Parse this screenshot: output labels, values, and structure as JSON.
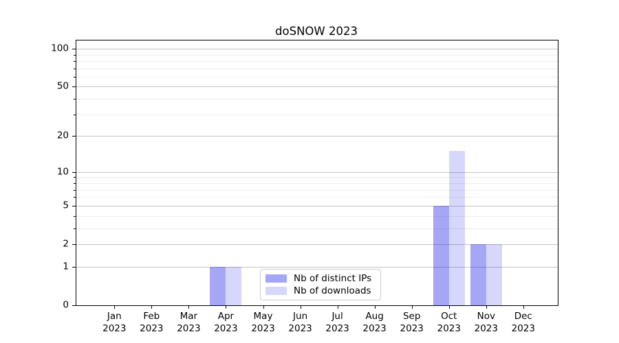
{
  "title": "doSNOW 2023",
  "chart_data": {
    "type": "bar",
    "title": "doSNOW 2023",
    "categories": [
      {
        "month": "Jan",
        "year": "2023"
      },
      {
        "month": "Feb",
        "year": "2023"
      },
      {
        "month": "Mar",
        "year": "2023"
      },
      {
        "month": "Apr",
        "year": "2023"
      },
      {
        "month": "May",
        "year": "2023"
      },
      {
        "month": "Jun",
        "year": "2023"
      },
      {
        "month": "Jul",
        "year": "2023"
      },
      {
        "month": "Aug",
        "year": "2023"
      },
      {
        "month": "Sep",
        "year": "2023"
      },
      {
        "month": "Oct",
        "year": "2023"
      },
      {
        "month": "Nov",
        "year": "2023"
      },
      {
        "month": "Dec",
        "year": "2023"
      }
    ],
    "series": [
      {
        "name": "Nb of distinct IPs",
        "color": "rgba(8,8,232,0.36)",
        "solid_color": "#a8a8f7",
        "values": [
          0,
          0,
          0,
          1,
          0,
          0,
          0,
          0,
          0,
          5,
          2,
          0
        ]
      },
      {
        "name": "Nb of downloads",
        "color": "rgba(8,8,232,0.16)",
        "solid_color": "#dcdcf9",
        "values": [
          0,
          0,
          0,
          1,
          0,
          0,
          0,
          0,
          0,
          15,
          2,
          0
        ]
      }
    ],
    "yscale": "log1p",
    "y_major_ticks": [
      0,
      1,
      2,
      5,
      10,
      20,
      50,
      100
    ],
    "y_minor_ticks": [
      3,
      4,
      6,
      7,
      8,
      9,
      30,
      40,
      60,
      70,
      80,
      90
    ],
    "ylim": [
      0,
      116.2
    ],
    "xlabel": "",
    "ylabel": "",
    "grid": "horizontal",
    "legend_position": "lower center inside"
  },
  "colors": {
    "background": "#ffffff",
    "axis": "#000000",
    "grid_major": "#c4c4c4",
    "grid_minor": "#eeeeee",
    "legend_border": "#cccccc",
    "bar_dark": "#a8a8f7",
    "bar_light": "#dcdcf9"
  }
}
